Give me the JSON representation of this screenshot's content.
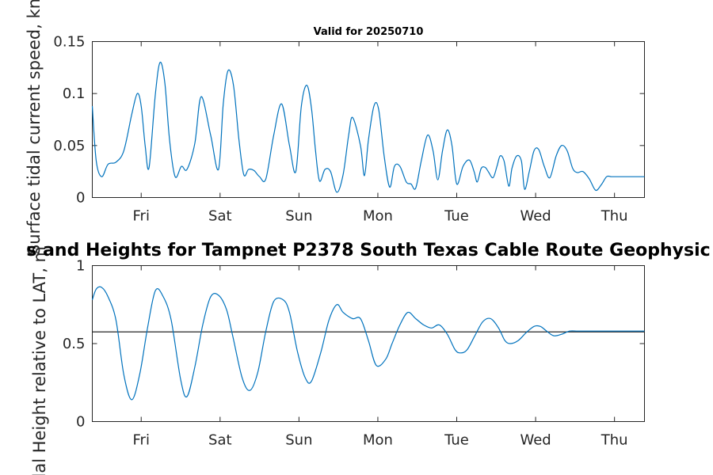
{
  "figure": {
    "subtitle": "Valid for 20250710",
    "title_visible": "s and Heights for Tampnet P2378 South Texas Cable Route Geophysic",
    "colors": {
      "line": "#0072BD",
      "axis": "#262626",
      "reference": "#262626"
    }
  },
  "chart_data": [
    {
      "type": "line",
      "title": "Valid for 20250710",
      "ylabel": "Surface tidal current speed, kn",
      "ylim": [
        0,
        0.15
      ],
      "yticks": [
        0,
        0.05,
        0.1,
        0.15
      ],
      "ytick_labels": [
        "0",
        "0.05",
        "0.1",
        "0.15"
      ],
      "xlim": [
        0,
        7
      ],
      "xtick_positions": [
        0.62,
        1.62,
        2.62,
        3.62,
        4.62,
        5.62,
        6.62
      ],
      "xtick_labels": [
        "Fri",
        "Sat",
        "Sun",
        "Mon",
        "Tue",
        "Wed",
        "Thu"
      ],
      "grid": false,
      "series": [
        {
          "x": [
            0.0,
            0.05,
            0.12,
            0.2,
            0.3,
            0.4,
            0.5,
            0.57,
            0.62,
            0.67,
            0.72,
            0.8,
            0.86,
            0.92,
            0.98,
            1.05,
            1.13,
            1.2,
            1.3,
            1.38,
            1.5,
            1.6,
            1.66,
            1.72,
            1.79,
            1.86,
            1.92,
            1.98,
            2.05,
            2.12,
            2.2,
            2.3,
            2.4,
            2.5,
            2.58,
            2.65,
            2.72,
            2.78,
            2.83,
            2.88,
            2.95,
            3.02,
            3.1,
            3.18,
            3.25,
            3.3,
            3.4,
            3.45,
            3.5,
            3.57,
            3.63,
            3.7,
            3.77,
            3.83,
            3.9,
            3.98,
            4.04,
            4.1,
            4.17,
            4.25,
            4.32,
            4.38,
            4.44,
            4.5,
            4.56,
            4.62,
            4.7,
            4.78,
            4.84,
            4.88,
            4.93,
            4.98,
            5.02,
            5.08,
            5.13,
            5.17,
            5.22,
            5.28,
            5.32,
            5.38,
            5.44,
            5.48,
            5.54,
            5.6,
            5.66,
            5.73,
            5.8,
            5.88,
            5.95,
            6.02,
            6.09,
            6.15,
            6.22,
            6.3,
            6.38,
            6.45,
            6.52,
            6.58,
            6.65,
            6.72,
            6.78,
            6.84,
            6.9,
            6.95,
            7.0
          ],
          "values": [
            0.088,
            0.035,
            0.02,
            0.032,
            0.034,
            0.045,
            0.08,
            0.1,
            0.088,
            0.05,
            0.029,
            0.1,
            0.13,
            0.11,
            0.055,
            0.02,
            0.03,
            0.027,
            0.052,
            0.097,
            0.06,
            0.027,
            0.09,
            0.122,
            0.108,
            0.055,
            0.022,
            0.027,
            0.026,
            0.02,
            0.018,
            0.06,
            0.09,
            0.05,
            0.025,
            0.088,
            0.108,
            0.085,
            0.045,
            0.016,
            0.027,
            0.025,
            0.005,
            0.022,
            0.06,
            0.077,
            0.05,
            0.021,
            0.055,
            0.088,
            0.085,
            0.04,
            0.01,
            0.03,
            0.03,
            0.015,
            0.013,
            0.009,
            0.035,
            0.06,
            0.045,
            0.017,
            0.045,
            0.065,
            0.05,
            0.013,
            0.03,
            0.036,
            0.025,
            0.015,
            0.028,
            0.029,
            0.025,
            0.019,
            0.03,
            0.04,
            0.035,
            0.011,
            0.028,
            0.04,
            0.035,
            0.008,
            0.025,
            0.045,
            0.046,
            0.03,
            0.019,
            0.04,
            0.05,
            0.045,
            0.028,
            0.024,
            0.025,
            0.018,
            0.007,
            0.012,
            0.02,
            0.02,
            0.02,
            0.02,
            0.02,
            0.02,
            0.02,
            0.02,
            0.02
          ]
        }
      ]
    },
    {
      "type": "line",
      "title": "s and Heights for Tampnet P2378 South Texas Cable Route Geophysic",
      "ylabel": "Tidal Height relative to LAT, m",
      "ylim": [
        0,
        1
      ],
      "yticks": [
        0,
        0.5,
        1
      ],
      "ytick_labels": [
        "0",
        "0.5",
        "1"
      ],
      "xlim": [
        0,
        7
      ],
      "xtick_positions": [
        0.62,
        1.62,
        2.62,
        3.62,
        4.62,
        5.62,
        6.62
      ],
      "xtick_labels": [
        "Fri",
        "Sat",
        "Sun",
        "Mon",
        "Tue",
        "Wed",
        "Thu"
      ],
      "grid": false,
      "reference_line": 0.575,
      "series": [
        {
          "x": [
            0.0,
            0.05,
            0.12,
            0.2,
            0.3,
            0.4,
            0.5,
            0.6,
            0.7,
            0.8,
            0.9,
            1.0,
            1.12,
            1.2,
            1.3,
            1.4,
            1.5,
            1.6,
            1.7,
            1.78,
            1.9,
            2.0,
            2.1,
            2.2,
            2.3,
            2.42,
            2.5,
            2.6,
            2.7,
            2.78,
            2.9,
            3.0,
            3.1,
            3.18,
            3.3,
            3.4,
            3.5,
            3.6,
            3.72,
            3.8,
            3.9,
            4.0,
            4.1,
            4.2,
            4.3,
            4.4,
            4.5,
            4.6,
            4.67,
            4.75,
            4.85,
            4.95,
            5.05,
            5.15,
            5.23,
            5.3,
            5.4,
            5.5,
            5.6,
            5.68,
            5.76,
            5.85,
            5.95,
            6.05,
            6.15,
            6.25,
            6.33,
            6.42,
            6.5,
            6.6,
            6.68,
            6.75,
            6.85,
            6.93,
            7.0
          ],
          "values": [
            0.78,
            0.85,
            0.86,
            0.8,
            0.65,
            0.3,
            0.14,
            0.3,
            0.6,
            0.84,
            0.8,
            0.65,
            0.27,
            0.16,
            0.35,
            0.62,
            0.8,
            0.81,
            0.72,
            0.55,
            0.28,
            0.2,
            0.32,
            0.58,
            0.77,
            0.78,
            0.7,
            0.45,
            0.28,
            0.26,
            0.45,
            0.65,
            0.75,
            0.7,
            0.66,
            0.66,
            0.52,
            0.36,
            0.4,
            0.5,
            0.62,
            0.7,
            0.66,
            0.62,
            0.6,
            0.62,
            0.56,
            0.46,
            0.44,
            0.46,
            0.55,
            0.64,
            0.66,
            0.6,
            0.52,
            0.5,
            0.52,
            0.57,
            0.61,
            0.61,
            0.58,
            0.55,
            0.56,
            0.58,
            0.58,
            0.58,
            0.58,
            0.58,
            0.58,
            0.58,
            0.58,
            0.58,
            0.58,
            0.58,
            0.58
          ]
        }
      ]
    }
  ]
}
